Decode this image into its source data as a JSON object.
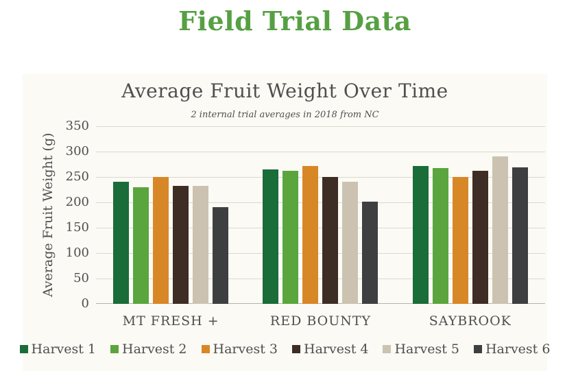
{
  "page": {
    "title": "Field Trial Data"
  },
  "colors": {
    "title_green": "#56a043",
    "text": "#4f4f4f",
    "card_background": "#fbfaf4",
    "gridline": "#dbd8d0",
    "axis_line": "#b5b2aa"
  },
  "chart_data": {
    "type": "bar",
    "title": "Average Fruit Weight Over Time",
    "subtitle": "2 internal trial averages in 2018 from NC",
    "xlabel": "",
    "ylabel": "Average Fruit Weight (g)",
    "ylim": [
      0,
      350
    ],
    "y_tick_step": 50,
    "y_ticks": [
      0,
      50,
      100,
      150,
      200,
      250,
      300,
      350
    ],
    "grid": true,
    "legend_position": "bottom",
    "categories": [
      "MT FRESH +",
      "RED BOUNTY",
      "SAYBROOK"
    ],
    "series": [
      {
        "name": "Harvest 1",
        "color": "#1a6c39",
        "values": [
          240,
          265,
          272
        ]
      },
      {
        "name": "Harvest 2",
        "color": "#5aa53e",
        "values": [
          230,
          262,
          268
        ]
      },
      {
        "name": "Harvest 3",
        "color": "#d88727",
        "values": [
          250,
          272,
          250
        ]
      },
      {
        "name": "Harvest 4",
        "color": "#3e2d24",
        "values": [
          233,
          250,
          262
        ]
      },
      {
        "name": "Harvest 5",
        "color": "#cbc2b1",
        "values": [
          233,
          240,
          290
        ]
      },
      {
        "name": "Harvest 6",
        "color": "#3d3f40",
        "values": [
          190,
          202,
          269
        ]
      }
    ]
  }
}
